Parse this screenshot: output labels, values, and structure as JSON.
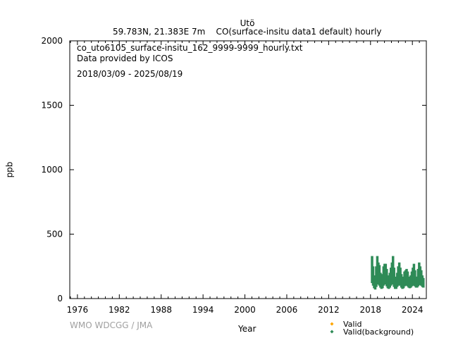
{
  "chart_data": {
    "type": "scatter",
    "title": "Utö",
    "subtitle": "59.783N, 21.383E 7m    CO(surface-insitu data1 default) hourly",
    "annotations": [
      "co_uto6105_surface-insitu_162_9999-9999_hourly.txt",
      "Data provided by ICOS",
      "2018/03/09 - 2025/08/19"
    ],
    "xlabel": "Year",
    "ylabel": "ppb",
    "xlim": [
      1974.9,
      2026.0
    ],
    "ylim": [
      0,
      2000
    ],
    "xticks": [
      1976,
      1982,
      1988,
      1994,
      2000,
      2006,
      2012,
      2018,
      2024
    ],
    "yticks": [
      0,
      500,
      1000,
      1500,
      2000
    ],
    "grid": false,
    "legend_placement": "bottom-right",
    "legend": [
      {
        "label": "Valid",
        "color": "#ffa500"
      },
      {
        "label": "Valid(background)",
        "color": "#2e8b57"
      }
    ],
    "credit": "WMO WDCGG / JMA",
    "series": [
      {
        "name": "Valid(background)",
        "color": "#2e8b57",
        "columns": [
          "year",
          "low",
          "high"
        ],
        "points": [
          [
            2018.2,
            120,
            330
          ],
          [
            2018.35,
            100,
            250
          ],
          [
            2018.5,
            80,
            180
          ],
          [
            2018.65,
            70,
            170
          ],
          [
            2018.8,
            90,
            250
          ],
          [
            2018.95,
            110,
            330
          ],
          [
            2019.1,
            110,
            280
          ],
          [
            2019.25,
            100,
            260
          ],
          [
            2019.4,
            85,
            200
          ],
          [
            2019.55,
            75,
            160
          ],
          [
            2019.7,
            80,
            190
          ],
          [
            2019.85,
            100,
            250
          ],
          [
            2020.0,
            110,
            270
          ],
          [
            2020.15,
            110,
            270
          ],
          [
            2020.3,
            95,
            230
          ],
          [
            2020.45,
            80,
            180
          ],
          [
            2020.6,
            75,
            150
          ],
          [
            2020.75,
            85,
            200
          ],
          [
            2020.9,
            100,
            240
          ],
          [
            2021.05,
            110,
            280
          ],
          [
            2021.2,
            110,
            330
          ],
          [
            2021.35,
            90,
            240
          ],
          [
            2021.5,
            75,
            170
          ],
          [
            2021.65,
            75,
            160
          ],
          [
            2021.8,
            90,
            200
          ],
          [
            2021.95,
            100,
            250
          ],
          [
            2022.1,
            110,
            280
          ],
          [
            2022.25,
            100,
            240
          ],
          [
            2022.4,
            85,
            190
          ],
          [
            2022.55,
            75,
            150
          ],
          [
            2022.7,
            80,
            170
          ],
          [
            2022.85,
            95,
            210
          ],
          [
            2023.0,
            100,
            220
          ],
          [
            2023.15,
            105,
            230
          ],
          [
            2023.3,
            95,
            210
          ],
          [
            2023.45,
            85,
            170
          ],
          [
            2023.6,
            80,
            150
          ],
          [
            2023.75,
            85,
            180
          ],
          [
            2023.9,
            95,
            210
          ],
          [
            2024.05,
            100,
            240
          ],
          [
            2024.2,
            105,
            270
          ],
          [
            2024.35,
            95,
            220
          ],
          [
            2024.5,
            85,
            170
          ],
          [
            2024.65,
            85,
            170
          ],
          [
            2024.8,
            95,
            230
          ],
          [
            2024.95,
            105,
            280
          ],
          [
            2025.1,
            105,
            250
          ],
          [
            2025.25,
            100,
            220
          ],
          [
            2025.4,
            90,
            180
          ],
          [
            2025.55,
            85,
            160
          ]
        ]
      }
    ]
  }
}
